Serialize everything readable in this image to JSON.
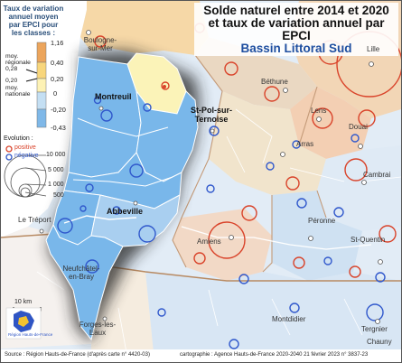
{
  "title": {
    "line1": "Solde naturel entre 2014 et 2020",
    "line2": "et taux de variation annuel par EPCI",
    "line3": "Bassin Littoral Sud"
  },
  "legend": {
    "title": "Taux de variation annuel moyen par EPCI pour les classes :",
    "class_ticks": [
      "1,16",
      "0,40",
      "0,20",
      "0",
      "-0,20",
      "-0,43"
    ],
    "markers": [
      {
        "label": "moy. régionale",
        "value": "0,28"
      },
      {
        "label": "moy. nationale",
        "value": "0,20"
      }
    ],
    "class_colors": [
      "#eca55c",
      "#f8d67c",
      "#fdf2b5",
      "#c4dff3",
      "#7fb8e8"
    ],
    "evolution_title": "Evolution :",
    "positive_label": "positive",
    "negative_label": "négative",
    "positive_color": "#d9432a",
    "negative_color": "#2f55c4",
    "circle_sizes": [
      "10 000",
      "5 000",
      "1 000",
      "500"
    ]
  },
  "places": {
    "boulogne": "Boulogne-sur-Mer",
    "lille": "Lille",
    "bethune": "Béthune",
    "lens": "Lens",
    "douai": "Douai",
    "arras": "Arras",
    "cambrai": "Cambrai",
    "peronne": "Péronne",
    "st_quentin": "St-Quentin",
    "amiens": "Amiens",
    "montdidier": "Montdidier",
    "tergnier": "Tergnier",
    "chauny": "Chauny",
    "le_treport": "Le Tréport",
    "neufchatel": "Neufchâtel-en-Bray",
    "forges": "Forges-les-Eaux",
    "montreuil": "Montreuil",
    "st_pol": "St-Pol-sur-Ternoise",
    "abbeville": "Abbeville"
  },
  "scale_label": "10 km",
  "logo_text": "Région Hauts-de-France",
  "footer": {
    "source": "Source : Région Hauts-de-France (d'après carte n° 4420-03)",
    "credit": "cartographie : Agence Hauts-de-France 2020-2040    21 février 2023 n° 3837-23"
  }
}
